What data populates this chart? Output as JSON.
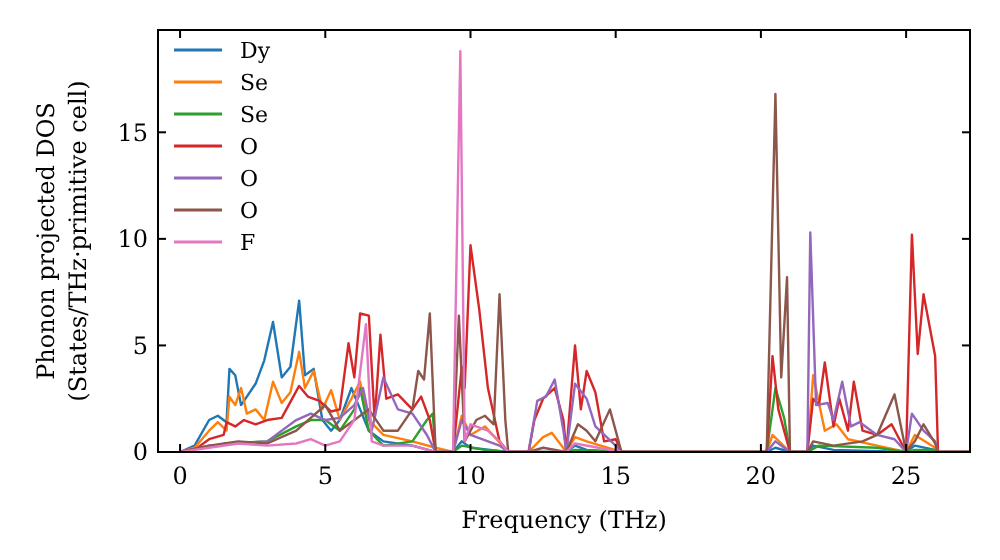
{
  "chart_data": {
    "type": "line",
    "xlabel": "Frequency (THz)",
    "ylabel": "Phonon projected DOS\n(States/THz·primitive cell)",
    "xlim": [
      -0.76,
      27.2
    ],
    "ylim": [
      0,
      19.8
    ],
    "xticks": [
      0,
      5,
      10,
      15,
      20,
      25
    ],
    "yticks": [
      0,
      5,
      10,
      15
    ],
    "legend": "top left",
    "grid": false,
    "marker": "none",
    "line_style": "solid",
    "series": [
      {
        "name": "Dy",
        "color": "#1f77b4",
        "x": [
          0,
          0.5,
          1,
          1.3,
          1.6,
          1.7,
          1.9,
          2.1,
          2.3,
          2.6,
          2.9,
          3.2,
          3.5,
          3.8,
          4.1,
          4.3,
          4.6,
          4.9,
          5.2,
          5.5,
          5.9,
          6.2,
          6.5,
          7,
          8,
          8.8,
          9.4,
          9.7,
          10,
          11.3,
          12,
          13.3,
          13.6,
          14,
          15.2,
          20.2,
          20.5,
          21,
          21.6,
          21.8,
          22.5,
          25,
          25.3,
          26,
          26.1,
          27.2
        ],
        "values": [
          0,
          0.3,
          1.5,
          1.7,
          1.4,
          3.9,
          3.6,
          2.2,
          2.6,
          3.2,
          4.3,
          6.1,
          3.5,
          4.0,
          7.1,
          3.6,
          3.9,
          1.5,
          1.0,
          1.5,
          3.0,
          2.0,
          1.0,
          0.5,
          0.3,
          0,
          0,
          0.5,
          0.2,
          0,
          0,
          0,
          0.3,
          0.1,
          0,
          0,
          0.2,
          0,
          0,
          0.3,
          0.1,
          0,
          0.3,
          0.1,
          0,
          0
        ]
      },
      {
        "name": "Se",
        "color": "#ff7f0e",
        "x": [
          0,
          0.5,
          1,
          1.3,
          1.6,
          1.7,
          1.9,
          2.1,
          2.3,
          2.6,
          2.9,
          3.2,
          3.5,
          3.8,
          4.1,
          4.3,
          4.6,
          4.9,
          5.2,
          5.5,
          5.9,
          6.2,
          6.5,
          7,
          8,
          8.8,
          9.4,
          9.7,
          10,
          10.5,
          11.3,
          12,
          12.5,
          12.8,
          13.3,
          13.6,
          14,
          15.2,
          20.2,
          20.4,
          21,
          21.6,
          21.8,
          22.2,
          22.6,
          23,
          24,
          25,
          25.3,
          26,
          26.1,
          27.2
        ],
        "values": [
          0,
          0.2,
          1.0,
          1.4,
          1.0,
          2.6,
          2.2,
          3.0,
          1.8,
          2.0,
          1.5,
          3.3,
          2.3,
          2.8,
          4.7,
          3.0,
          3.8,
          2.0,
          2.9,
          1.5,
          2.5,
          3.3,
          1.5,
          0.8,
          0.5,
          0.2,
          0,
          1.7,
          0.8,
          1.2,
          0,
          0,
          0.7,
          0.9,
          0,
          0.7,
          0.5,
          0,
          0,
          0.8,
          0,
          0,
          3.6,
          1.0,
          1.3,
          0.6,
          0.3,
          0,
          0.8,
          0.2,
          0,
          0
        ]
      },
      {
        "name": "Se",
        "color": "#2ca02c",
        "x": [
          1.5,
          3,
          4,
          4.5,
          5,
          5.5,
          6,
          6.2,
          6.5,
          7,
          8,
          8.5,
          8.7,
          8.8,
          9.4,
          9.7,
          10.5,
          11.3,
          12,
          13.3,
          13.6,
          15.2,
          20.2,
          20.5,
          20.8,
          21,
          21.6,
          22,
          24,
          25,
          25.3,
          26,
          26.1,
          27.2
        ],
        "values": [
          0.4,
          0.5,
          1.2,
          1.5,
          1.5,
          1.0,
          2.0,
          3.0,
          1.0,
          0.3,
          0.5,
          1.5,
          1.8,
          0,
          0,
          0.3,
          0.1,
          0,
          0,
          0,
          0.1,
          0,
          0,
          3.0,
          1.6,
          0,
          0,
          0.3,
          0.2,
          0,
          0.1,
          0.1,
          0,
          0
        ]
      },
      {
        "name": "O",
        "color": "#d62728",
        "x": [
          0,
          0.5,
          1,
          1.5,
          1.6,
          1.9,
          2.2,
          2.6,
          3,
          3.5,
          4.1,
          4.4,
          4.8,
          5.2,
          5.5,
          5.8,
          6.0,
          6.2,
          6.5,
          6.7,
          6.9,
          7.1,
          7.5,
          8.0,
          8.3,
          8.6,
          8.8,
          9.4,
          9.7,
          9.8,
          10.0,
          10.3,
          10.6,
          11,
          11.3,
          12,
          12.2,
          12.5,
          12.9,
          13.2,
          13.3,
          13.6,
          13.8,
          14.0,
          14.3,
          14.6,
          15,
          15.2,
          20.2,
          20.4,
          20.6,
          21,
          21.6,
          21.8,
          22.0,
          22.2,
          22.5,
          22.7,
          23.0,
          23.2,
          23.5,
          24,
          24.5,
          25,
          25.2,
          25.4,
          25.6,
          26,
          26.1,
          27.2
        ],
        "values": [
          0,
          0.1,
          0.6,
          0.8,
          1.4,
          1.2,
          1.5,
          1.3,
          1.5,
          1.6,
          3.1,
          2.6,
          2.4,
          1.9,
          2.0,
          5.1,
          3.5,
          6.5,
          6.4,
          1.5,
          5.5,
          2.5,
          2.7,
          2.0,
          2.6,
          1.5,
          0,
          0,
          4.0,
          3.0,
          9.7,
          6.7,
          3.0,
          0.5,
          0,
          0,
          1.5,
          2.5,
          3.0,
          1.5,
          0,
          5.0,
          2.0,
          3.8,
          2.8,
          0.5,
          0.6,
          0,
          0,
          4.5,
          2.0,
          0,
          0,
          2.5,
          2.2,
          4.2,
          1.2,
          2.5,
          1.0,
          3.3,
          1.0,
          0.8,
          1.3,
          0,
          10.2,
          4.6,
          7.4,
          4.5,
          0,
          0
        ]
      },
      {
        "name": "O",
        "color": "#9467bd",
        "x": [
          0,
          1,
          2,
          3,
          4,
          4.5,
          5,
          5.5,
          6,
          6.3,
          6.6,
          7,
          7.5,
          8,
          8.5,
          8.8,
          9.4,
          9.7,
          10,
          11,
          11.3,
          12,
          12.3,
          12.6,
          12.9,
          13.2,
          13.3,
          13.6,
          14,
          14.3,
          15,
          15.2,
          20.2,
          20.5,
          21,
          21.6,
          21.7,
          21.9,
          22.3,
          22.5,
          22.8,
          23.1,
          23.4,
          24,
          24.6,
          25,
          25.2,
          25.6,
          26,
          26.1,
          27.2
        ],
        "values": [
          0,
          0.3,
          0.4,
          0.5,
          1.5,
          1.8,
          1.5,
          1.6,
          2.2,
          3.0,
          1.0,
          3.5,
          2.0,
          1.8,
          0.8,
          0,
          0,
          1.5,
          0.8,
          0.3,
          0,
          0,
          2.4,
          2.6,
          3.4,
          1.0,
          0,
          3.2,
          2.5,
          1.2,
          0.3,
          0,
          0,
          0.5,
          0,
          0,
          10.3,
          2.2,
          2.3,
          1.5,
          3.3,
          1.2,
          1.4,
          0.8,
          0.6,
          0,
          1.8,
          1.0,
          0.5,
          0,
          0
        ]
      },
      {
        "name": "O",
        "color": "#8c564b",
        "x": [
          0,
          1,
          2,
          3,
          4,
          5,
          5.5,
          6,
          6.5,
          7,
          7.5,
          8,
          8.2,
          8.4,
          8.6,
          8.8,
          9.4,
          9.6,
          9.8,
          10.2,
          10.5,
          10.8,
          11.0,
          11.2,
          11.3,
          12,
          12.5,
          13.3,
          13.7,
          14,
          14.3,
          14.8,
          15.2,
          20.2,
          20.5,
          20.7,
          20.9,
          21,
          21.6,
          21.8,
          22.5,
          23.5,
          24,
          24.6,
          25,
          25.3,
          25.6,
          26,
          26.1,
          27.2
        ],
        "values": [
          0,
          0.3,
          0.5,
          0.4,
          1.0,
          2.2,
          1.0,
          1.5,
          2.0,
          1.0,
          1.0,
          2.0,
          3.8,
          3.4,
          6.5,
          0,
          0,
          6.4,
          0.5,
          1.5,
          1.7,
          1.3,
          7.4,
          1.5,
          0,
          0,
          0.2,
          0,
          1.3,
          1.0,
          0.5,
          2.0,
          0,
          0,
          16.8,
          3.5,
          8.2,
          0,
          0,
          0.5,
          0.3,
          0.5,
          0.8,
          2.7,
          0,
          0.5,
          1.3,
          0.4,
          0,
          0
        ]
      },
      {
        "name": "F",
        "color": "#e377c2",
        "x": [
          0,
          1,
          2,
          3,
          4,
          4.5,
          5,
          5.5,
          6,
          6.4,
          6.6,
          7,
          8,
          8.8,
          9.4,
          9.65,
          9.8,
          10,
          10.6,
          11,
          11.3,
          12,
          13.3,
          13.6,
          15.2
        ],
        "values": [
          0,
          0.2,
          0.4,
          0.3,
          0.4,
          0.6,
          0.3,
          0.5,
          1.5,
          6.0,
          0.5,
          0.3,
          0.3,
          0,
          0,
          18.8,
          0.5,
          1.3,
          1.0,
          0.5,
          0,
          0,
          0,
          0.4,
          0
        ]
      }
    ]
  }
}
